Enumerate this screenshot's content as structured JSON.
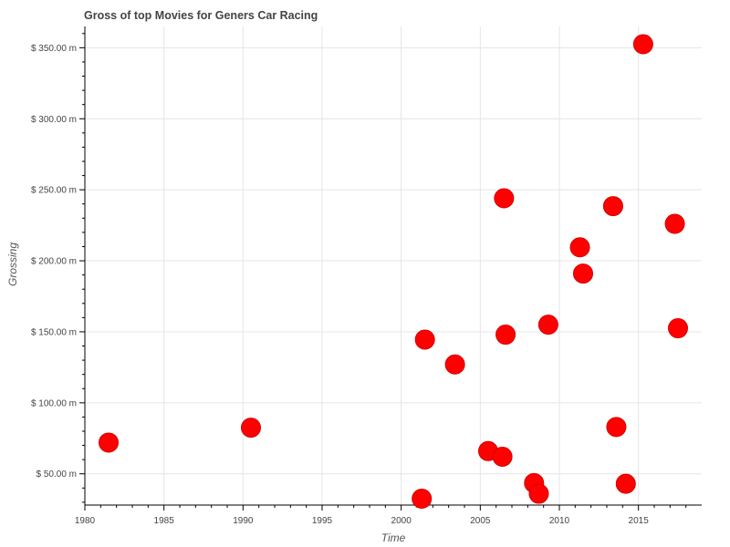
{
  "chart_data": {
    "type": "scatter",
    "title": "Gross of top Movies for Geners Car Racing",
    "xlabel": "Time",
    "ylabel": "Grossing",
    "xlim": [
      1980,
      2019
    ],
    "ylim": [
      28,
      365
    ],
    "x_ticks": [
      1980,
      1985,
      1990,
      1995,
      2000,
      2005,
      2010,
      2015
    ],
    "x_tick_labels": [
      "1980",
      "1985",
      "1990",
      "1995",
      "2000",
      "2005",
      "2010",
      "2015"
    ],
    "y_ticks": [
      50,
      100,
      150,
      200,
      250,
      300,
      350
    ],
    "y_tick_labels": [
      "$ 50.00 m",
      "$ 100.00 m",
      "$ 150.00 m",
      "$ 200.00 m",
      "$ 250.00 m",
      "$ 300.00 m",
      "$ 350.00 m"
    ],
    "grid": true,
    "marker_color": "#ff0000",
    "points": [
      {
        "x": 1981.5,
        "y": 72
      },
      {
        "x": 1990.5,
        "y": 82.5
      },
      {
        "x": 2001.3,
        "y": 32.5
      },
      {
        "x": 2001.5,
        "y": 144.5
      },
      {
        "x": 2003.4,
        "y": 127
      },
      {
        "x": 2005.5,
        "y": 66
      },
      {
        "x": 2006.4,
        "y": 62
      },
      {
        "x": 2006.5,
        "y": 244
      },
      {
        "x": 2006.6,
        "y": 148
      },
      {
        "x": 2008.4,
        "y": 43.5
      },
      {
        "x": 2008.7,
        "y": 36
      },
      {
        "x": 2009.3,
        "y": 155
      },
      {
        "x": 2011.3,
        "y": 209.5
      },
      {
        "x": 2011.5,
        "y": 191
      },
      {
        "x": 2013.4,
        "y": 238.5
      },
      {
        "x": 2013.6,
        "y": 83
      },
      {
        "x": 2014.2,
        "y": 43
      },
      {
        "x": 2015.3,
        "y": 352.5
      },
      {
        "x": 2017.3,
        "y": 226
      },
      {
        "x": 2017.5,
        "y": 152.5
      }
    ]
  }
}
